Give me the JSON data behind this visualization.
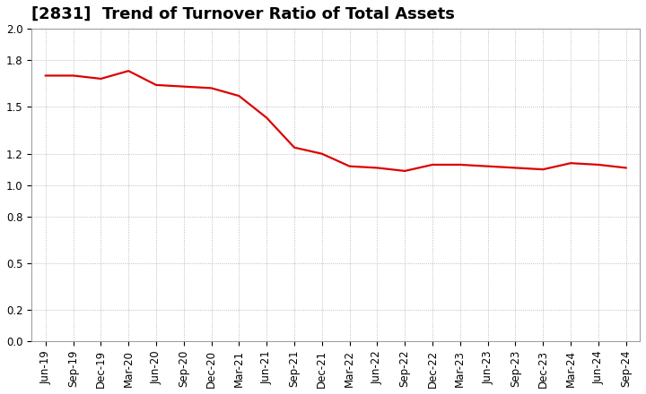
{
  "title": "[2831]  Trend of Turnover Ratio of Total Assets",
  "labels": [
    "Jun-19",
    "Sep-19",
    "Dec-19",
    "Mar-20",
    "Jun-20",
    "Sep-20",
    "Dec-20",
    "Mar-21",
    "Jun-21",
    "Sep-21",
    "Dec-21",
    "Mar-22",
    "Jun-22",
    "Sep-22",
    "Dec-22",
    "Mar-23",
    "Jun-23",
    "Sep-23",
    "Dec-23",
    "Mar-24",
    "Jun-24",
    "Sep-24"
  ],
  "values": [
    1.7,
    1.7,
    1.68,
    1.73,
    1.64,
    1.63,
    1.62,
    1.57,
    1.43,
    1.24,
    1.2,
    1.12,
    1.11,
    1.09,
    1.13,
    1.13,
    1.12,
    1.11,
    1.1,
    1.14,
    1.13,
    1.11
  ],
  "line_color": "#dd0000",
  "line_width": 1.6,
  "ylim": [
    0.0,
    2.0
  ],
  "yticks": [
    0.0,
    0.2,
    0.5,
    0.8,
    1.0,
    1.2,
    1.5,
    1.8,
    2.0
  ],
  "bg_color": "#ffffff",
  "plot_bg_color": "#ffffff",
  "grid_color": "#aaaaaa",
  "title_fontsize": 13,
  "tick_fontsize": 8.5
}
